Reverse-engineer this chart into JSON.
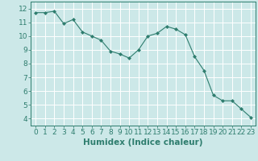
{
  "x": [
    0,
    1,
    2,
    3,
    4,
    5,
    6,
    7,
    8,
    9,
    10,
    11,
    12,
    13,
    14,
    15,
    16,
    17,
    18,
    19,
    20,
    21,
    22,
    23
  ],
  "y": [
    11.7,
    11.7,
    11.8,
    10.9,
    11.2,
    10.3,
    10.0,
    9.7,
    8.9,
    8.7,
    8.4,
    9.0,
    10.0,
    10.2,
    10.7,
    10.5,
    10.1,
    8.5,
    7.5,
    5.7,
    5.3,
    5.3,
    4.7,
    4.1
  ],
  "line_color": "#2e7d6e",
  "marker": "D",
  "marker_size": 2,
  "bg_color": "#cce8e8",
  "grid_color": "#ffffff",
  "tick_color": "#2e7d6e",
  "label_color": "#2e7d6e",
  "xlabel": "Humidex (Indice chaleur)",
  "xlim": [
    -0.5,
    23.5
  ],
  "ylim": [
    3.5,
    12.5
  ],
  "yticks": [
    4,
    5,
    6,
    7,
    8,
    9,
    10,
    11,
    12
  ],
  "xticks": [
    0,
    1,
    2,
    3,
    4,
    5,
    6,
    7,
    8,
    9,
    10,
    11,
    12,
    13,
    14,
    15,
    16,
    17,
    18,
    19,
    20,
    21,
    22,
    23
  ],
  "font_size": 6.5,
  "xlabel_fontsize": 7.5
}
